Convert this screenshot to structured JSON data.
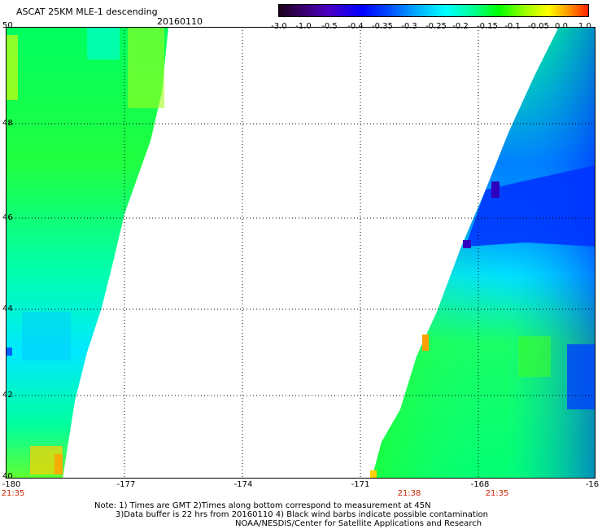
{
  "header": {
    "title": "ASCAT 25KM MLE-1 descending",
    "date": "20160110"
  },
  "colorbar": {
    "ticks": [
      "-3.0",
      "-1.0",
      "-0.5",
      "-0.4",
      "-0.35",
      "-0.3",
      "-0.25",
      "-0.2",
      "-0.15",
      "-0.1",
      "-0.05",
      "0.0",
      "1.0"
    ]
  },
  "map": {
    "lat_labels": [
      "50",
      "48",
      "46",
      "44",
      "42",
      "40"
    ],
    "lon_labels": [
      "-180",
      "-177",
      "-174",
      "-171",
      "-168",
      "-16"
    ],
    "time_labels": [
      "21:35",
      "21:38",
      "21:35"
    ]
  },
  "notes": {
    "line1": "Note: 1) Times are GMT 2)Times along bottom correspond to measurement at 45N",
    "line2": "3)Data buffer is 22 hrs from 20160110 4) Black wind barbs indicate possible contamination",
    "line3": "NOAA/NESDIS/Center for Satellite Applications and Research"
  }
}
